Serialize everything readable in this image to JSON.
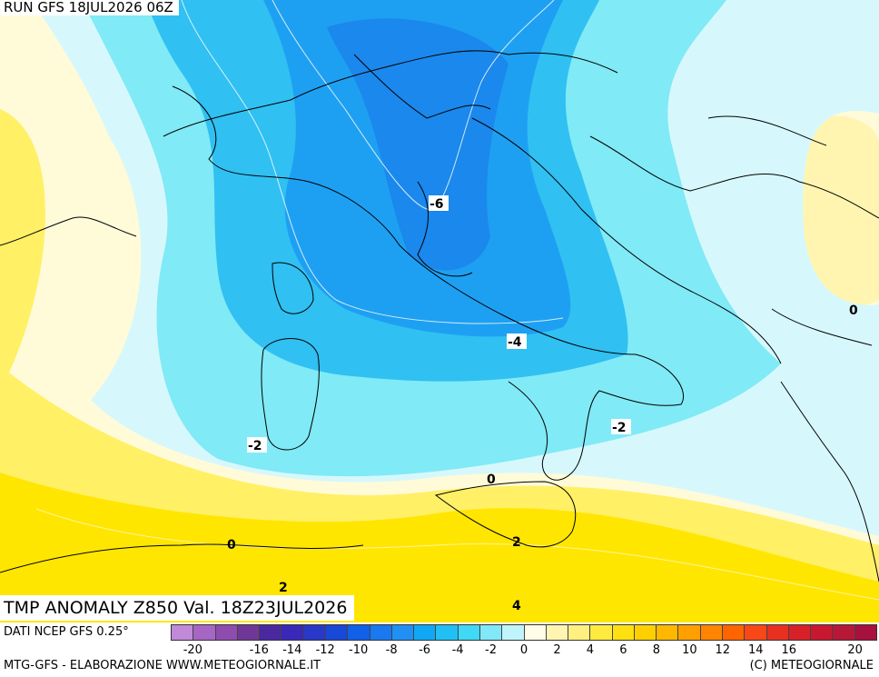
{
  "header": {
    "run": "RUN GFS 18JUL2026 06Z"
  },
  "title": "TMP ANOMALY Z850 Val. 18Z23JUL2026",
  "source": "DATI NCEP GFS 0.25°",
  "footer": {
    "left": "MTG-GFS - ELABORAZIONE WWW.METEOGIORNALE.IT",
    "right": "(C) METEOGIORNALE"
  },
  "contour_labels": [
    "-6",
    "-4",
    "-2",
    "-2",
    "0",
    "0",
    "0",
    "2",
    "2",
    "4"
  ],
  "legend": {
    "colors": [
      "#c08ad8",
      "#a566c4",
      "#8e4cae",
      "#703896",
      "#4a28a0",
      "#3a28b8",
      "#2838c8",
      "#1848d8",
      "#1060e8",
      "#1a78f0",
      "#2090f5",
      "#10a8f5",
      "#20c0f5",
      "#40d8f5",
      "#80e8f8",
      "#c0f4fb",
      "#fffce8",
      "#fff5b0",
      "#fff080",
      "#ffeb40",
      "#ffe010",
      "#ffd000",
      "#ffb800",
      "#ffa000",
      "#ff8400",
      "#ff6400",
      "#f84818",
      "#e83020",
      "#d82028",
      "#c81830",
      "#b81838",
      "#a81040"
    ],
    "ticks": [
      "-20",
      "-18",
      "-16",
      "-14",
      "-12",
      "-10",
      "-8",
      "-6",
      "-4",
      "-2",
      "0",
      "2",
      "4",
      "6",
      "8",
      "10",
      "12",
      "14",
      "16",
      "18",
      "20"
    ],
    "tick_labels_shown": [
      "-20",
      "-16",
      "-14",
      "-12",
      "-10",
      "-8",
      "-6",
      "-4",
      "-2",
      "0",
      "2",
      "4",
      "6",
      "8",
      "10",
      "12",
      "14",
      "16",
      "20"
    ]
  }
}
